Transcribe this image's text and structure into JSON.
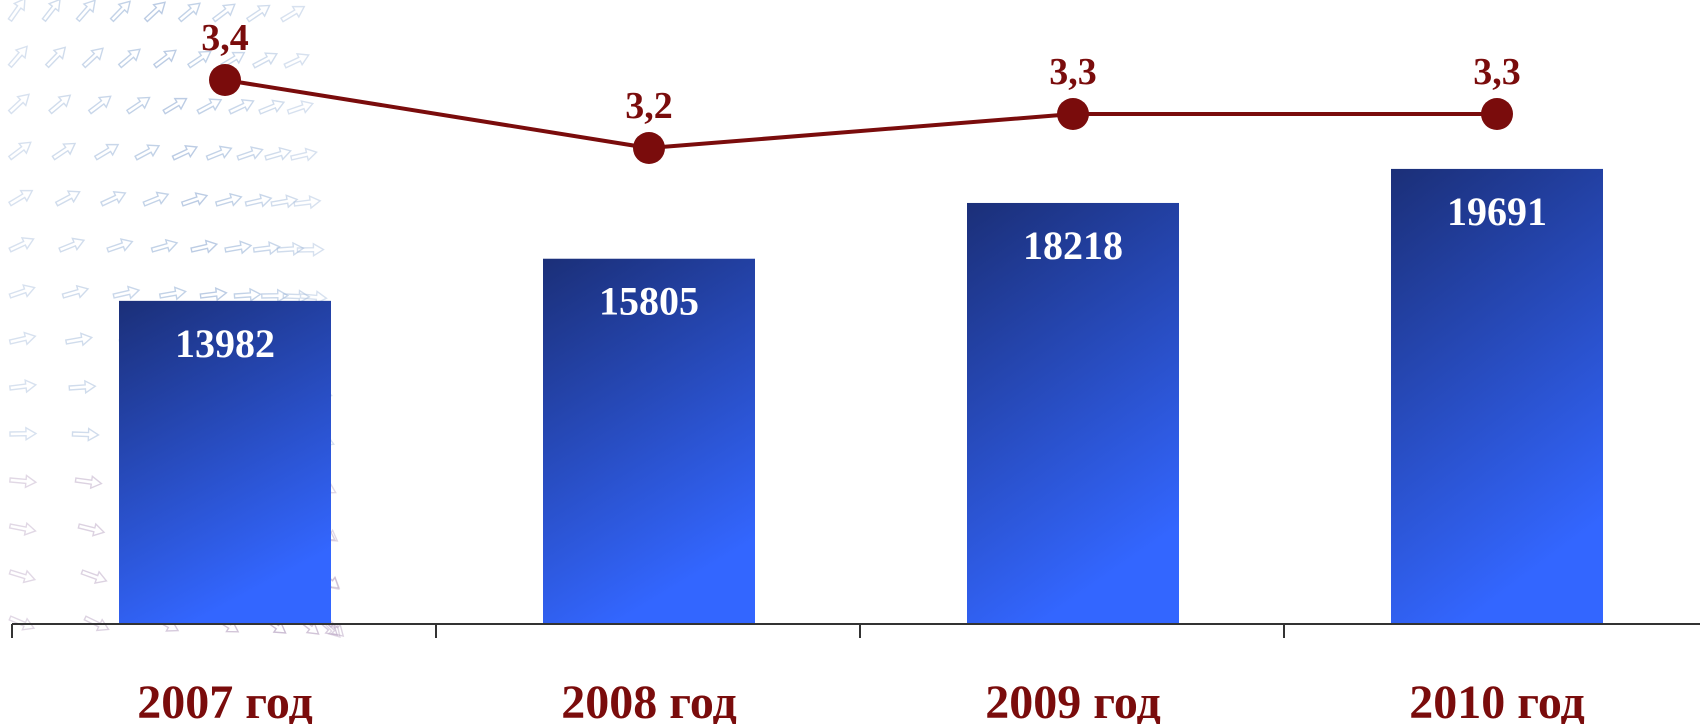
{
  "chart_data": {
    "type": "bar",
    "categories": [
      "2007 год",
      "2008 год",
      "2009 год",
      "2010 год"
    ],
    "series": [
      {
        "kind": "bar",
        "values": [
          13982,
          15805,
          18218,
          19691
        ]
      },
      {
        "kind": "line",
        "values": [
          3.4,
          3.2,
          3.3,
          3.3
        ],
        "labels": [
          "3,4",
          "3,2",
          "3,3",
          "3,3"
        ]
      }
    ],
    "bar_ylim": [
      0,
      27000
    ],
    "line_ylim": [
      1.8,
      3.6
    ],
    "title": "",
    "xlabel": "",
    "ylabel": "",
    "grid": false,
    "legend": "none"
  },
  "colors": {
    "bar_top": "#1b2f78",
    "bar_bottom": "#3366ff",
    "line": "#7a0c0c",
    "axis": "#333333"
  }
}
